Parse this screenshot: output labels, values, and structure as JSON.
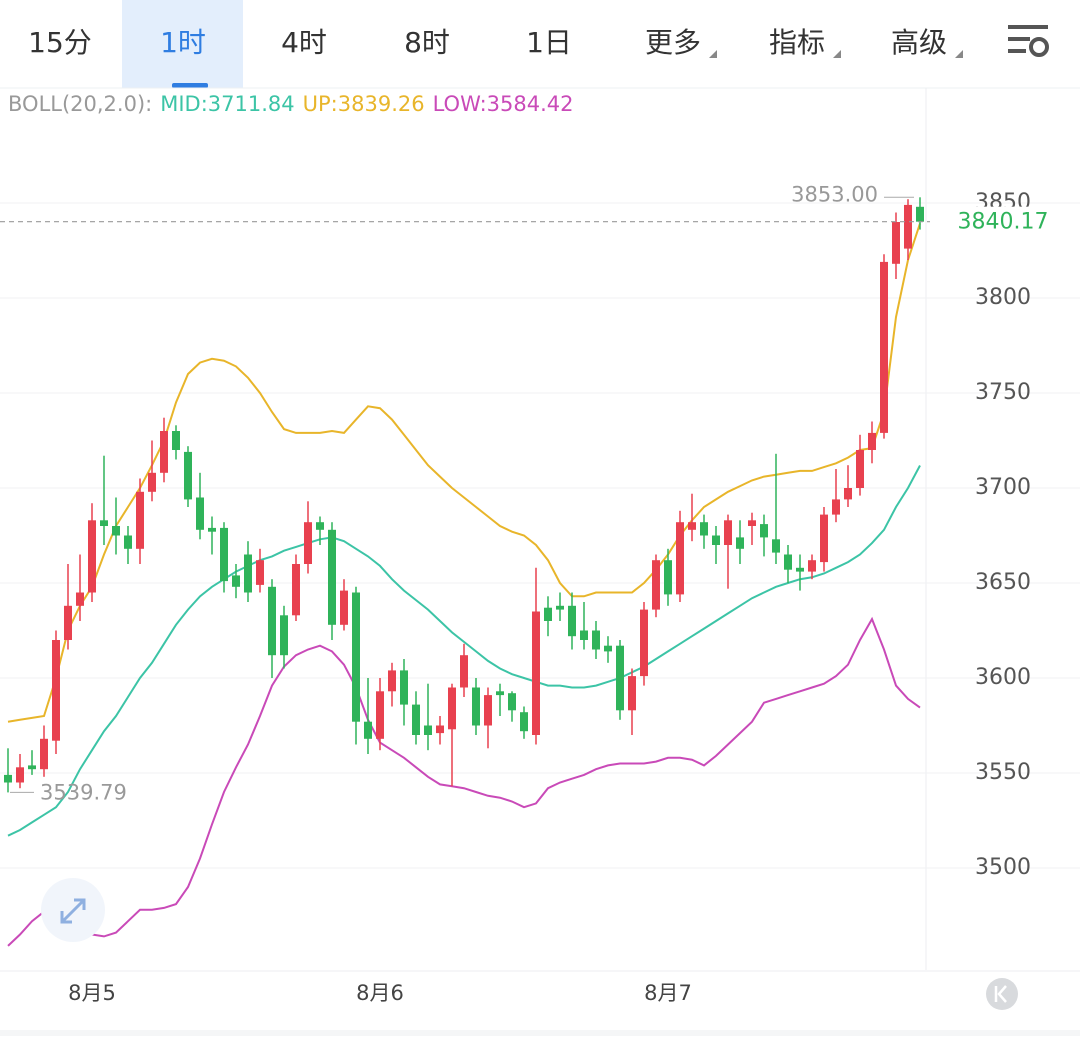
{
  "tabs": [
    {
      "label": "15分"
    },
    {
      "label": "1时",
      "active": true
    },
    {
      "label": "4时"
    },
    {
      "label": "8时"
    },
    {
      "label": "1日"
    },
    {
      "label": "更多",
      "menu": true
    },
    {
      "label": "指标",
      "menu": true
    },
    {
      "label": "高级",
      "menu": true
    }
  ],
  "chart_data": {
    "type": "candlestick",
    "indicator": "BOLL(20,2.0):",
    "categories": [
      null,
      null,
      null,
      null,
      null,
      null,
      null,
      "8月5",
      null,
      null,
      null,
      null,
      null,
      null,
      null,
      null,
      null,
      null,
      null,
      null,
      null,
      null,
      null,
      null,
      null,
      null,
      null,
      null,
      null,
      null,
      null,
      "8月6",
      null,
      null,
      null,
      null,
      null,
      null,
      null,
      null,
      null,
      null,
      null,
      null,
      null,
      null,
      null,
      null,
      null,
      null,
      null,
      null,
      null,
      null,
      null,
      "8月7",
      null,
      null,
      null,
      null,
      null,
      null,
      null,
      null,
      null,
      null,
      null,
      null,
      null,
      null,
      null,
      null,
      null,
      null,
      null,
      null,
      null
    ],
    "open": [
      3549,
      3545,
      3554,
      3552,
      3567,
      3620,
      3638,
      3645,
      3683,
      3680,
      3675,
      3668,
      3698,
      3708,
      3730,
      3719,
      3695,
      3679,
      3679,
      3654,
      3665,
      3649,
      3648,
      3633,
      3633,
      3660,
      3682,
      3678,
      3628,
      3645,
      3577,
      3568,
      3593,
      3604,
      3586,
      3575,
      3571,
      3573,
      3595,
      3595,
      3575,
      3593,
      3592,
      3582,
      3570,
      3637,
      3638,
      3638,
      3625,
      3625,
      3617,
      3617,
      3583,
      3601,
      3636,
      3662,
      3644,
      3678,
      3682,
      3675,
      3670,
      3674,
      3680,
      3681,
      3673,
      3665,
      3658,
      3656,
      3661,
      3686,
      3694,
      3700,
      3720,
      3729,
      3818,
      3826,
      3848
    ],
    "high": [
      3563,
      3560,
      3562,
      3575,
      3625,
      3660,
      3665,
      3692,
      3717,
      3695,
      3680,
      3705,
      3725,
      3737,
      3733,
      3722,
      3708,
      3685,
      3682,
      3660,
      3672,
      3668,
      3652,
      3638,
      3665,
      3693,
      3685,
      3682,
      3652,
      3648,
      3600,
      3600,
      3608,
      3610,
      3593,
      3597,
      3580,
      3597,
      3618,
      3600,
      3595,
      3597,
      3593,
      3585,
      3658,
      3643,
      3645,
      3645,
      3640,
      3630,
      3622,
      3620,
      3605,
      3640,
      3665,
      3668,
      3688,
      3697,
      3686,
      3680,
      3686,
      3683,
      3687,
      3686,
      3718,
      3670,
      3665,
      3665,
      3690,
      3710,
      3712,
      3728,
      3735,
      3823,
      3845,
      3852,
      3853
    ],
    "low": [
      3539.79,
      3542,
      3549,
      3548,
      3560,
      3615,
      3630,
      3640,
      3670,
      3665,
      3660,
      3660,
      3693,
      3703,
      3715,
      3690,
      3673,
      3665,
      3645,
      3642,
      3640,
      3645,
      3600,
      3605,
      3630,
      3655,
      3670,
      3620,
      3625,
      3565,
      3560,
      3562,
      3585,
      3575,
      3565,
      3562,
      3565,
      3543,
      3590,
      3570,
      3563,
      3580,
      3577,
      3568,
      3565,
      3622,
      3630,
      3615,
      3615,
      3610,
      3608,
      3578,
      3570,
      3596,
      3632,
      3638,
      3640,
      3672,
      3668,
      3660,
      3647,
      3660,
      3670,
      3664,
      3660,
      3650,
      3646,
      3652,
      3656,
      3682,
      3690,
      3696,
      3713,
      3726,
      3810,
      3820,
      3836
    ],
    "close": [
      3545,
      3553,
      3552,
      3568,
      3620,
      3638,
      3645,
      3683,
      3680,
      3675,
      3668,
      3698,
      3708,
      3730,
      3720,
      3694,
      3678,
      3677,
      3651,
      3648,
      3645,
      3662,
      3612,
      3612,
      3660,
      3682,
      3678,
      3628,
      3646,
      3577,
      3568,
      3593,
      3604,
      3586,
      3570,
      3570,
      3575,
      3595,
      3612,
      3575,
      3591,
      3591,
      3583,
      3572,
      3635,
      3630,
      3636,
      3622,
      3620,
      3615,
      3614,
      3583,
      3601,
      3636,
      3662,
      3644,
      3682,
      3682,
      3675,
      3670,
      3683,
      3668,
      3683,
      3674,
      3666,
      3657,
      3656,
      3662,
      3686,
      3694,
      3700,
      3720,
      3729,
      3819,
      3840,
      3849,
      3840.17
    ],
    "up_color": "#e8414f",
    "down_color": "#2fb35a",
    "series": [
      {
        "name": "MID:3711.84",
        "color": "#3cc4a6",
        "values": [
          3517,
          3520,
          3524,
          3528,
          3532,
          3540,
          3552,
          3562,
          3572,
          3580,
          3590,
          3600,
          3608,
          3618,
          3628,
          3636,
          3643,
          3648,
          3652,
          3656,
          3659,
          3662,
          3664,
          3667,
          3669,
          3671,
          3673,
          3674,
          3672,
          3668,
          3664,
          3659,
          3652,
          3646,
          3641,
          3636,
          3630,
          3624,
          3619,
          3614,
          3609,
          3605,
          3602,
          3600,
          3598,
          3596,
          3596,
          3595,
          3595,
          3596,
          3598,
          3600,
          3603,
          3606,
          3610,
          3614,
          3618,
          3622,
          3626,
          3630,
          3634,
          3638,
          3642,
          3645,
          3648,
          3650,
          3652,
          3653,
          3655,
          3658,
          3661,
          3665,
          3671,
          3678,
          3690,
          3700,
          3711.84
        ]
      },
      {
        "name": "UP:3839.26",
        "color": "#e8b52a",
        "values": [
          3577,
          3578,
          3579,
          3580,
          3600,
          3625,
          3638,
          3648,
          3665,
          3680,
          3690,
          3700,
          3712,
          3725,
          3745,
          3760,
          3766,
          3768,
          3767,
          3764,
          3758,
          3750,
          3740,
          3731,
          3729,
          3729,
          3729,
          3730,
          3729,
          3736,
          3743,
          3742,
          3736,
          3728,
          3720,
          3712,
          3706,
          3700,
          3695,
          3690,
          3685,
          3680,
          3677,
          3675,
          3670,
          3662,
          3650,
          3643,
          3643,
          3645,
          3645,
          3645,
          3645,
          3650,
          3657,
          3665,
          3675,
          3683,
          3690,
          3694,
          3698,
          3701,
          3704,
          3706,
          3707,
          3708,
          3709,
          3709,
          3711,
          3713,
          3716,
          3720,
          3721,
          3740,
          3790,
          3820,
          3839.26
        ]
      },
      {
        "name": "LOW:3584.42",
        "color": "#c94ab8",
        "values": [
          3459,
          3465,
          3472,
          3477,
          3474,
          3471,
          3467,
          3465,
          3464,
          3466,
          3472,
          3478,
          3478,
          3479,
          3481,
          3490,
          3505,
          3523,
          3540,
          3553,
          3565,
          3580,
          3596,
          3606,
          3612,
          3615,
          3617,
          3614,
          3607,
          3595,
          3578,
          3566,
          3562,
          3558,
          3553,
          3548,
          3544,
          3543,
          3542,
          3540,
          3538,
          3537,
          3535,
          3532,
          3534,
          3542,
          3545,
          3547,
          3549,
          3552,
          3554,
          3555,
          3555,
          3555,
          3556,
          3558,
          3558,
          3557,
          3554,
          3559,
          3565,
          3571,
          3577,
          3587,
          3589,
          3591,
          3593,
          3595,
          3597,
          3601,
          3607,
          3620,
          3631,
          3615,
          3596,
          3589,
          3584.42
        ]
      }
    ],
    "ylim": [
      3446,
      3910
    ],
    "yticks": [
      3500,
      3550,
      3600,
      3650,
      3700,
      3750,
      3800,
      3850
    ],
    "grid": true,
    "high_marker": {
      "value": 3853,
      "label": "3853.00"
    },
    "low_marker": 3539.79,
    "last_price": 3840.17
  }
}
